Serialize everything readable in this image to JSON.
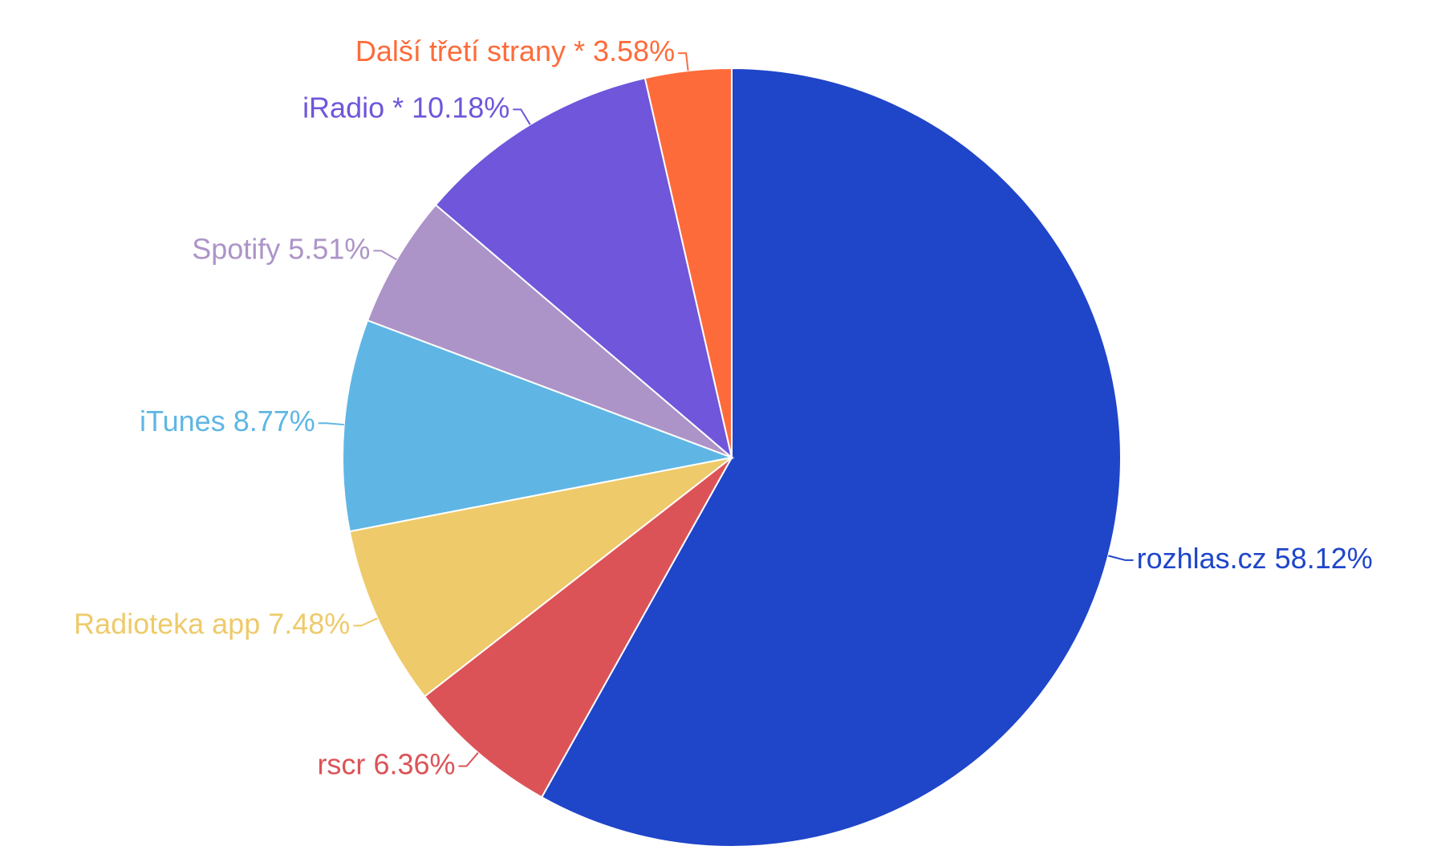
{
  "chart_data": {
    "type": "pie",
    "categories": [
      "rozhlas.cz",
      "rscr",
      "Radioteka app",
      "iTunes",
      "Spotify",
      "iRadio *",
      "Další třetí strany *"
    ],
    "values": [
      58.12,
      6.36,
      7.48,
      8.77,
      5.51,
      10.18,
      3.58
    ],
    "value_labels": [
      "58.12%",
      "6.36%",
      "7.48%",
      "8.77%",
      "5.51%",
      "10.18%",
      "3.58%"
    ],
    "colors": [
      "#1f45c9",
      "#dc5357",
      "#eeca6a",
      "#5fb6e4",
      "#ac94c8",
      "#6f56da",
      "#fe6b3a"
    ]
  }
}
